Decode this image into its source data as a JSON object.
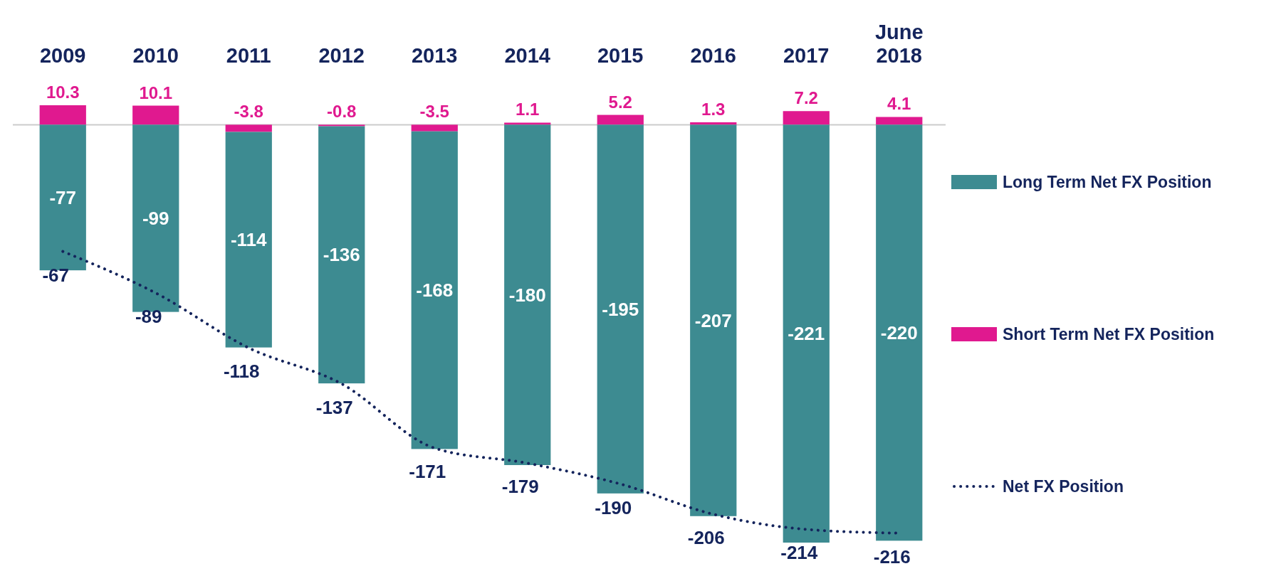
{
  "chart_data": {
    "type": "bar",
    "stacked": true,
    "categories": [
      "2009",
      "2010",
      "2011",
      "2012",
      "2013",
      "2014",
      "2015",
      "2016",
      "2017",
      "June 2018"
    ],
    "series": [
      {
        "name": "Short Term Net FX Position",
        "color": "#e0198f",
        "values": [
          10.3,
          10.1,
          -3.8,
          -0.8,
          -3.5,
          1.1,
          5.2,
          1.3,
          7.2,
          4.1
        ]
      },
      {
        "name": "Long Term Net FX Position",
        "color": "#3d8b91",
        "values": [
          -77,
          -99,
          -114,
          -136,
          -168,
          -180,
          -195,
          -207,
          -221,
          -220
        ]
      },
      {
        "name": "Net FX Position",
        "type": "line",
        "color": "#14245c",
        "line_style": "dotted",
        "marker": "none",
        "values": [
          -67,
          -89,
          -118,
          -137,
          -171,
          -179,
          -190,
          -206,
          -214,
          -216
        ]
      }
    ],
    "data_labels": true,
    "legend": "right",
    "tick_labels": "x",
    "grid": false
  }
}
